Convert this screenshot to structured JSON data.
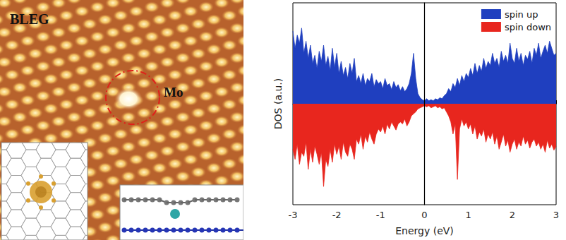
{
  "chart_data": {
    "type": "line",
    "ylabel": "DOS (a.u.)",
    "xlabel": "Energy (eV)",
    "x": [
      -3,
      -2.95,
      -2.9,
      -2.85,
      -2.8,
      -2.75,
      -2.7,
      -2.65,
      -2.6,
      -2.55,
      -2.5,
      -2.45,
      -2.4,
      -2.35,
      -2.3,
      -2.25,
      -2.2,
      -2.15,
      -2.1,
      -2.05,
      -2,
      -1.95,
      -1.9,
      -1.85,
      -1.8,
      -1.75,
      -1.7,
      -1.65,
      -1.6,
      -1.55,
      -1.5,
      -1.45,
      -1.4,
      -1.35,
      -1.3,
      -1.25,
      -1.2,
      -1.15,
      -1.1,
      -1.05,
      -1,
      -0.95,
      -0.9,
      -0.85,
      -0.8,
      -0.75,
      -0.7,
      -0.65,
      -0.6,
      -0.55,
      -0.5,
      -0.45,
      -0.4,
      -0.35,
      -0.3,
      -0.25,
      -0.2,
      -0.15,
      -0.1,
      -0.05,
      0,
      0.05,
      0.1,
      0.15,
      0.2,
      0.25,
      0.3,
      0.35,
      0.4,
      0.45,
      0.5,
      0.55,
      0.6,
      0.65,
      0.7,
      0.75,
      0.8,
      0.85,
      0.9,
      0.95,
      1,
      1.05,
      1.1,
      1.15,
      1.2,
      1.25,
      1.3,
      1.35,
      1.4,
      1.45,
      1.5,
      1.55,
      1.6,
      1.65,
      1.7,
      1.75,
      1.8,
      1.85,
      1.9,
      1.95,
      2,
      2.05,
      2.1,
      2.15,
      2.2,
      2.25,
      2.3,
      2.35,
      2.4,
      2.45,
      2.5,
      2.55,
      2.6,
      2.65,
      2.7,
      2.75,
      2.8,
      2.85,
      2.9,
      2.95,
      3
    ],
    "series": [
      {
        "name": "spin up",
        "color": "#1f3fbf",
        "values": [
          0.72,
          0.55,
          0.68,
          0.6,
          0.75,
          0.5,
          0.62,
          0.45,
          0.58,
          0.4,
          0.48,
          0.35,
          0.52,
          0.42,
          0.58,
          0.38,
          0.47,
          0.33,
          0.55,
          0.36,
          0.5,
          0.3,
          0.42,
          0.28,
          0.36,
          0.25,
          0.4,
          0.3,
          0.45,
          0.22,
          0.28,
          0.2,
          0.3,
          0.18,
          0.25,
          0.22,
          0.3,
          0.17,
          0.24,
          0.2,
          0.22,
          0.15,
          0.25,
          0.18,
          0.2,
          0.14,
          0.22,
          0.16,
          0.19,
          0.13,
          0.17,
          0.12,
          0.15,
          0.2,
          0.3,
          0.5,
          0.25,
          0.1,
          0.06,
          0.04,
          0.03,
          0.05,
          0.03,
          0.04,
          0.03,
          0.05,
          0.04,
          0.06,
          0.05,
          0.08,
          0.1,
          0.15,
          0.12,
          0.2,
          0.16,
          0.25,
          0.18,
          0.28,
          0.22,
          0.3,
          0.26,
          0.35,
          0.28,
          0.4,
          0.3,
          0.38,
          0.32,
          0.45,
          0.35,
          0.42,
          0.38,
          0.5,
          0.4,
          0.45,
          0.36,
          0.52,
          0.42,
          0.48,
          0.4,
          0.6,
          0.45,
          0.4,
          0.55,
          0.42,
          0.5,
          0.38,
          0.48,
          0.44,
          0.52,
          0.4,
          0.55,
          0.48,
          0.6,
          0.45,
          0.52,
          0.58,
          0.5,
          0.62,
          0.55,
          0.48,
          0.5
        ]
      },
      {
        "name": "spin down",
        "color": "#e8261e",
        "values": [
          -0.45,
          -0.55,
          -0.4,
          -0.6,
          -0.48,
          -0.52,
          -0.38,
          -0.65,
          -0.45,
          -0.58,
          -0.42,
          -0.5,
          -0.6,
          -0.48,
          -0.82,
          -0.55,
          -0.62,
          -0.45,
          -0.58,
          -0.4,
          -0.5,
          -0.42,
          -0.55,
          -0.38,
          -0.48,
          -0.52,
          -0.4,
          -0.45,
          -0.55,
          -0.35,
          -0.4,
          -0.3,
          -0.45,
          -0.32,
          -0.38,
          -0.28,
          -0.35,
          -0.4,
          -0.3,
          -0.25,
          -0.28,
          -0.22,
          -0.3,
          -0.2,
          -0.25,
          -0.18,
          -0.22,
          -0.26,
          -0.2,
          -0.18,
          -0.2,
          -0.15,
          -0.22,
          -0.18,
          -0.12,
          -0.1,
          -0.08,
          -0.05,
          -0.04,
          -0.03,
          -0.02,
          -0.03,
          -0.02,
          -0.04,
          -0.03,
          -0.02,
          -0.04,
          -0.03,
          -0.05,
          -0.04,
          -0.08,
          -0.12,
          -0.18,
          -0.3,
          -0.2,
          -0.75,
          -0.25,
          -0.15,
          -0.22,
          -0.18,
          -0.25,
          -0.2,
          -0.3,
          -0.22,
          -0.35,
          -0.28,
          -0.32,
          -0.25,
          -0.38,
          -0.3,
          -0.35,
          -0.28,
          -0.4,
          -0.32,
          -0.45,
          -0.38,
          -0.3,
          -0.42,
          -0.36,
          -0.48,
          -0.4,
          -0.35,
          -0.45,
          -0.38,
          -0.42,
          -0.32,
          -0.4,
          -0.36,
          -0.44,
          -0.38,
          -0.35,
          -0.42,
          -0.38,
          -0.45,
          -0.4,
          -0.48,
          -0.36,
          -0.44,
          -0.4,
          -0.46,
          -0.42
        ]
      }
    ],
    "vline": 0,
    "xlim": [
      -3,
      3
    ],
    "xticks": [
      -3,
      -2,
      -1,
      0,
      1,
      2,
      3
    ],
    "ylim": [
      -1,
      1
    ],
    "tick_labels": "x",
    "grid": false,
    "legend": "upper right"
  },
  "stm_image": {
    "title": "BLEG",
    "annotation": "Mo"
  }
}
